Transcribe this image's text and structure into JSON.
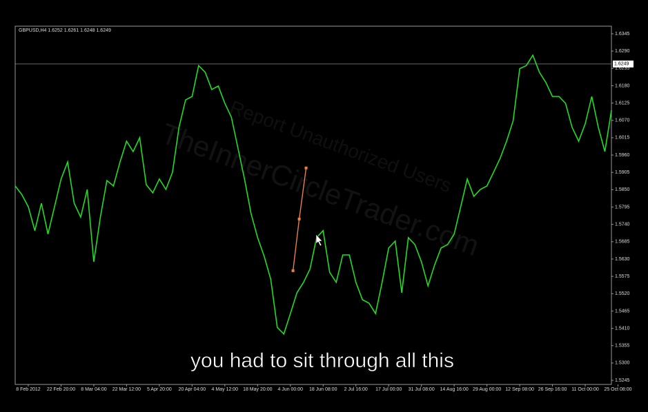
{
  "chart_data": {
    "type": "line",
    "header": "GBPUSD,H4  1.6252 1.6261 1.6248 1.6249",
    "caption": "you had to sit through all this",
    "watermarks": [
      "TheInnerCircleTrader.com",
      "Report Unauthorized Users"
    ],
    "xlim": [
      -4,
      178
    ],
    "ylim": [
      1.5232,
      1.6369
    ],
    "xticks": [
      {
        "value": 0,
        "label": "8 Feb 2012"
      },
      {
        "value": 10,
        "label": "22 Feb 20:00"
      },
      {
        "value": 20,
        "label": "8 Mar 04:00"
      },
      {
        "value": 30,
        "label": "22 Mar 12:00"
      },
      {
        "value": 40,
        "label": "5 Apr 20:00"
      },
      {
        "value": 50,
        "label": "20 Apr 04:00"
      },
      {
        "value": 60,
        "label": "4 May 12:00"
      },
      {
        "value": 70,
        "label": "18 May 20:00"
      },
      {
        "value": 80,
        "label": "4 Jun 00:00"
      },
      {
        "value": 90,
        "label": "18 Jun 08:00"
      },
      {
        "value": 100,
        "label": "2 Jul 16:00"
      },
      {
        "value": 110,
        "label": "17 Jul 00:00"
      },
      {
        "value": 120,
        "label": "31 Jul 08:00"
      },
      {
        "value": 130,
        "label": "14 Aug 16:00"
      },
      {
        "value": 140,
        "label": "29 Aug 00:00"
      },
      {
        "value": 150,
        "label": "12 Sep 08:00"
      },
      {
        "value": 160,
        "label": "26 Sep 16:00"
      },
      {
        "value": 170,
        "label": "11 Oct 00:00"
      },
      {
        "value": 180,
        "label": "25 Oct 08:00"
      }
    ],
    "yticks": [
      1.6345,
      {
        "value": 1.629,
        "label": "1.6290"
      },
      1.6235,
      {
        "value": 1.618,
        "label": "1.6180"
      },
      1.6125,
      {
        "value": 1.607,
        "label": "1.6070"
      },
      1.6015,
      {
        "value": 1.596,
        "label": "1.5960"
      },
      1.5905,
      {
        "value": 1.585,
        "label": "1.5850"
      },
      1.5795,
      {
        "value": 1.574,
        "label": "1.5740"
      },
      1.5685,
      {
        "value": 1.563,
        "label": "1.5630"
      },
      1.5575,
      {
        "value": 1.552,
        "label": "1.5520"
      },
      1.5465,
      {
        "value": 1.541,
        "label": "1.5410"
      },
      1.5355,
      {
        "value": 1.53,
        "label": "1.5300"
      },
      1.5245
    ],
    "current_price": 1.6249,
    "series": [
      {
        "color": "#22dd22",
        "x": [
          -4,
          -2,
          0,
          2,
          4,
          6,
          8,
          10,
          12,
          14,
          16,
          18,
          20,
          22,
          24,
          26,
          28,
          30,
          32,
          34,
          36,
          38,
          40,
          42,
          44,
          46,
          48,
          50,
          52,
          54,
          56,
          58,
          60,
          62,
          64,
          66,
          68,
          70,
          72,
          74,
          76,
          78,
          80,
          82,
          84,
          86,
          88,
          90,
          92,
          94,
          96,
          98,
          100,
          102,
          104,
          106,
          108,
          110,
          112,
          114,
          116,
          118,
          120,
          122,
          124,
          126,
          128,
          130,
          132,
          134,
          136,
          138,
          140,
          142,
          144,
          146,
          148,
          150,
          152,
          154,
          156,
          158,
          160,
          162,
          164,
          166,
          168,
          170,
          172,
          174,
          176,
          178
        ],
        "values": [
          1.5862,
          1.5835,
          1.5796,
          1.572,
          1.5807,
          1.5709,
          1.5796,
          1.5884,
          1.5938,
          1.5807,
          1.5763,
          1.5851,
          1.5621,
          1.5763,
          1.5879,
          1.5862,
          1.5938,
          1.6004,
          1.5971,
          1.6015,
          1.5866,
          1.584,
          1.5884,
          1.5851,
          1.5905,
          1.6048,
          1.6135,
          1.6146,
          1.6244,
          1.6223,
          1.6168,
          1.6179,
          1.6124,
          1.608,
          1.5982,
          1.5884,
          1.5774,
          1.5698,
          1.5639,
          1.5566,
          1.5413,
          1.5392,
          1.5457,
          1.5523,
          1.5556,
          1.5599,
          1.5698,
          1.572,
          1.5588,
          1.5556,
          1.5643,
          1.5643,
          1.5556,
          1.5501,
          1.549,
          1.5457,
          1.5556,
          1.5665,
          1.5687,
          1.5523,
          1.5698,
          1.5676,
          1.5621,
          1.5545,
          1.561,
          1.5665,
          1.5676,
          1.5709,
          1.5796,
          1.5884,
          1.5829,
          1.5851,
          1.5862,
          1.5905,
          1.5949,
          1.6004,
          1.6069,
          1.6234,
          1.6244,
          1.6277,
          1.6223,
          1.619,
          1.6146,
          1.6146,
          1.6124,
          1.6048,
          1.6004,
          1.6059,
          1.6146,
          1.6048,
          1.5971,
          1.6102
        ]
      }
    ],
    "trendline": {
      "color": "#e8804a",
      "x": [
        80.8,
        82.7,
        84.8
      ],
      "values": [
        1.5593,
        1.5757,
        1.5919
      ]
    }
  }
}
